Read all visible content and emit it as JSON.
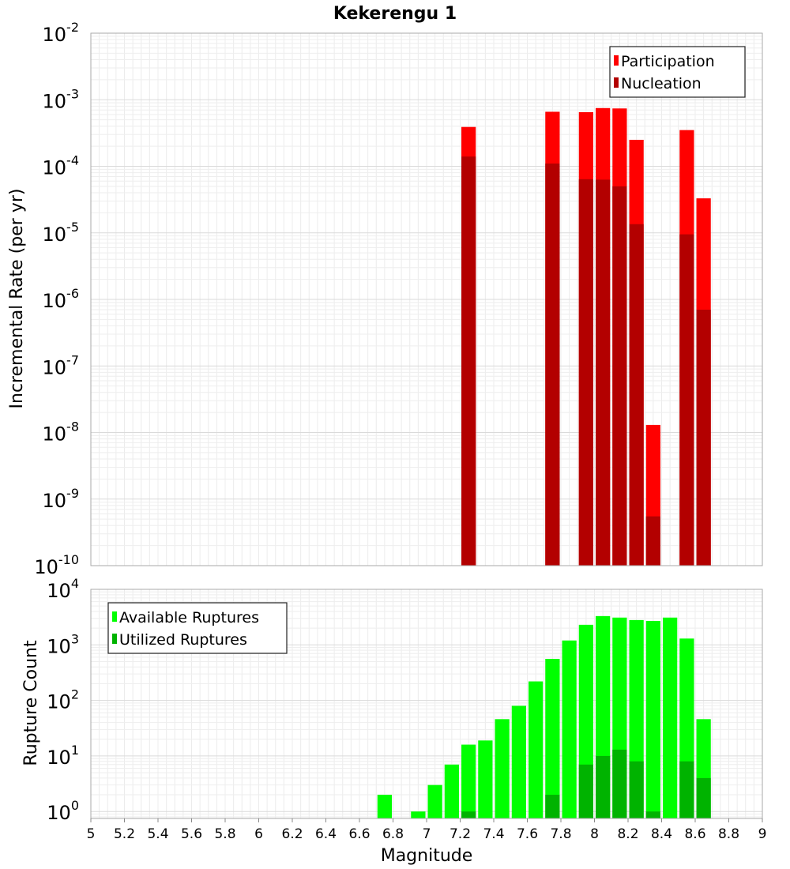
{
  "title": "Kekerengu 1",
  "chart_data": [
    {
      "type": "bar",
      "id": "rate-panel",
      "scale": "log",
      "ylabel": "Incremental Rate (per yr)",
      "ylim": [
        1e-10,
        0.01
      ],
      "x_range": [
        5,
        9
      ],
      "bin_width": 0.1,
      "legend_position": "top-right",
      "series": [
        {
          "name": "Participation",
          "color": "#ff0000",
          "points": [
            {
              "x": 7.25,
              "y": 0.00039
            },
            {
              "x": 7.75,
              "y": 0.00066
            },
            {
              "x": 7.95,
              "y": 0.00065
            },
            {
              "x": 8.05,
              "y": 0.00075
            },
            {
              "x": 8.15,
              "y": 0.00074
            },
            {
              "x": 8.25,
              "y": 0.00025
            },
            {
              "x": 8.35,
              "y": 1.3e-08
            },
            {
              "x": 8.55,
              "y": 0.00035
            },
            {
              "x": 8.65,
              "y": 3.3e-05
            }
          ]
        },
        {
          "name": "Nucleation",
          "color": "#b30000",
          "points": [
            {
              "x": 7.25,
              "y": 0.00014
            },
            {
              "x": 7.75,
              "y": 0.00011
            },
            {
              "x": 7.95,
              "y": 6.4e-05
            },
            {
              "x": 8.05,
              "y": 6.3e-05
            },
            {
              "x": 8.15,
              "y": 5e-05
            },
            {
              "x": 8.25,
              "y": 1.35e-05
            },
            {
              "x": 8.35,
              "y": 5.5e-10
            },
            {
              "x": 8.55,
              "y": 9.5e-06
            },
            {
              "x": 8.65,
              "y": 7e-07
            }
          ]
        }
      ]
    },
    {
      "type": "bar",
      "id": "count-panel",
      "scale": "log",
      "xlabel": "Magnitude",
      "ylabel": "Rupture Count",
      "ylim": [
        0.75,
        10000
      ],
      "x_range": [
        5,
        9
      ],
      "bin_width": 0.1,
      "legend_position": "top-left",
      "series": [
        {
          "name": "Available Ruptures",
          "color": "#00ff00",
          "points": [
            {
              "x": 6.75,
              "y": 2
            },
            {
              "x": 6.95,
              "y": 1
            },
            {
              "x": 7.05,
              "y": 3
            },
            {
              "x": 7.15,
              "y": 7
            },
            {
              "x": 7.25,
              "y": 16
            },
            {
              "x": 7.35,
              "y": 19
            },
            {
              "x": 7.45,
              "y": 46
            },
            {
              "x": 7.55,
              "y": 80
            },
            {
              "x": 7.65,
              "y": 220
            },
            {
              "x": 7.75,
              "y": 560
            },
            {
              "x": 7.85,
              "y": 1200
            },
            {
              "x": 7.95,
              "y": 2300
            },
            {
              "x": 8.05,
              "y": 3300
            },
            {
              "x": 8.15,
              "y": 3100
            },
            {
              "x": 8.25,
              "y": 2800
            },
            {
              "x": 8.35,
              "y": 2700
            },
            {
              "x": 8.45,
              "y": 3100
            },
            {
              "x": 8.55,
              "y": 1300
            },
            {
              "x": 8.65,
              "y": 46
            }
          ]
        },
        {
          "name": "Utilized Ruptures",
          "color": "#00b300",
          "points": [
            {
              "x": 7.25,
              "y": 1
            },
            {
              "x": 7.75,
              "y": 2
            },
            {
              "x": 7.95,
              "y": 7
            },
            {
              "x": 8.05,
              "y": 10
            },
            {
              "x": 8.15,
              "y": 13
            },
            {
              "x": 8.25,
              "y": 8
            },
            {
              "x": 8.35,
              "y": 1
            },
            {
              "x": 8.55,
              "y": 8
            },
            {
              "x": 8.65,
              "y": 4
            }
          ]
        }
      ]
    }
  ],
  "x_ticks": [
    5,
    5.2,
    5.4,
    5.6,
    5.8,
    6,
    6.2,
    6.4,
    6.6,
    6.8,
    7,
    7.2,
    7.4,
    7.6,
    7.8,
    8,
    8.2,
    8.4,
    8.6,
    8.8,
    9
  ]
}
